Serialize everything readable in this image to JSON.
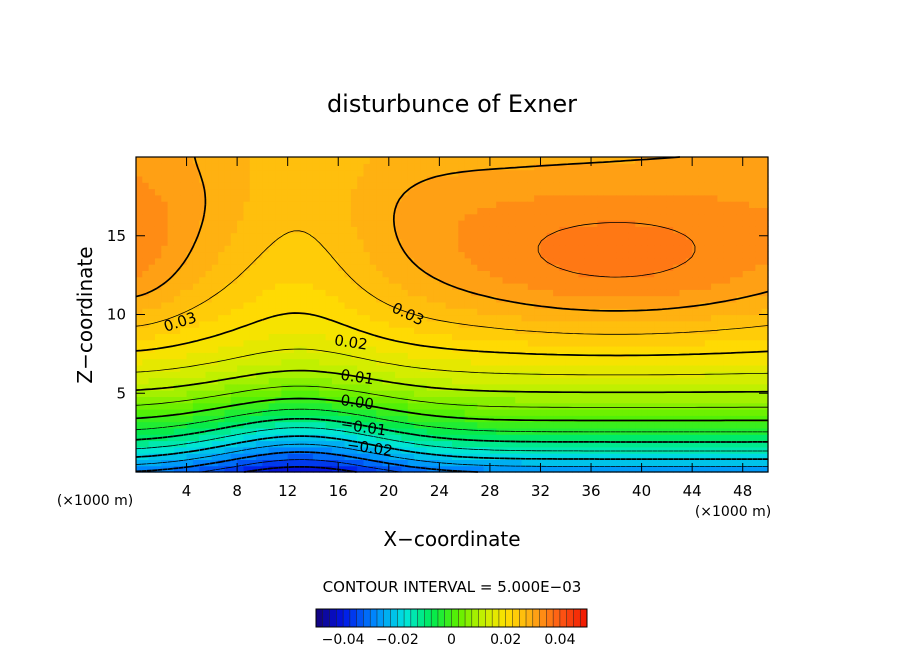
{
  "chart_data": {
    "type": "heatmap",
    "title": "disturbunce of Exner",
    "xlabel": "X−coordinate",
    "ylabel": "Z−coordinate",
    "x_unit_left": "(×1000 m)",
    "x_unit_right": "(×1000 m)",
    "xlim": [
      0,
      50
    ],
    "ylim": [
      0,
      20
    ],
    "x_ticks": [
      4,
      8,
      12,
      16,
      20,
      24,
      28,
      32,
      36,
      40,
      44,
      48
    ],
    "x_tick_labels": [
      "4",
      "8",
      "12",
      "16",
      "20",
      "24",
      "28",
      "32",
      "36",
      "40",
      "44",
      "48"
    ],
    "y_ticks": [
      5,
      10,
      15
    ],
    "y_tick_labels": [
      "5",
      "10",
      "15"
    ],
    "contour_interval_text": "CONTOUR INTERVAL = 5.000E−03",
    "contour_interval": 0.005,
    "contour_labels": [
      {
        "text": "0.03",
        "x": 3.5,
        "z": 9.5
      },
      {
        "text": "0.03",
        "x": 21.5,
        "z": 10.0
      },
      {
        "text": "0.02",
        "x": 17.0,
        "z": 8.2
      },
      {
        "text": "0.01",
        "x": 17.5,
        "z": 6.0
      },
      {
        "text": "0.00",
        "x": 17.5,
        "z": 4.4
      },
      {
        "text": "−0.01",
        "x": 18.0,
        "z": 2.8
      },
      {
        "text": "−0.02",
        "x": 18.5,
        "z": 1.5
      }
    ],
    "colorbar": {
      "range": [
        -0.05,
        0.05
      ],
      "tick_values": [
        -0.04,
        -0.02,
        0,
        0.02,
        0.04
      ],
      "tick_labels": [
        "−0.04",
        "−0.02",
        "0",
        "0.02",
        "0.04"
      ]
    },
    "field_samples": [
      {
        "x": 0,
        "z": 13,
        "value": 0.038
      },
      {
        "x": 13,
        "z": 15,
        "value": 0.029
      },
      {
        "x": 38,
        "z": 12.5,
        "value": 0.04
      },
      {
        "x": 13,
        "z": 0.5,
        "value": -0.042
      },
      {
        "x": 40,
        "z": 0.5,
        "value": -0.03
      }
    ]
  }
}
